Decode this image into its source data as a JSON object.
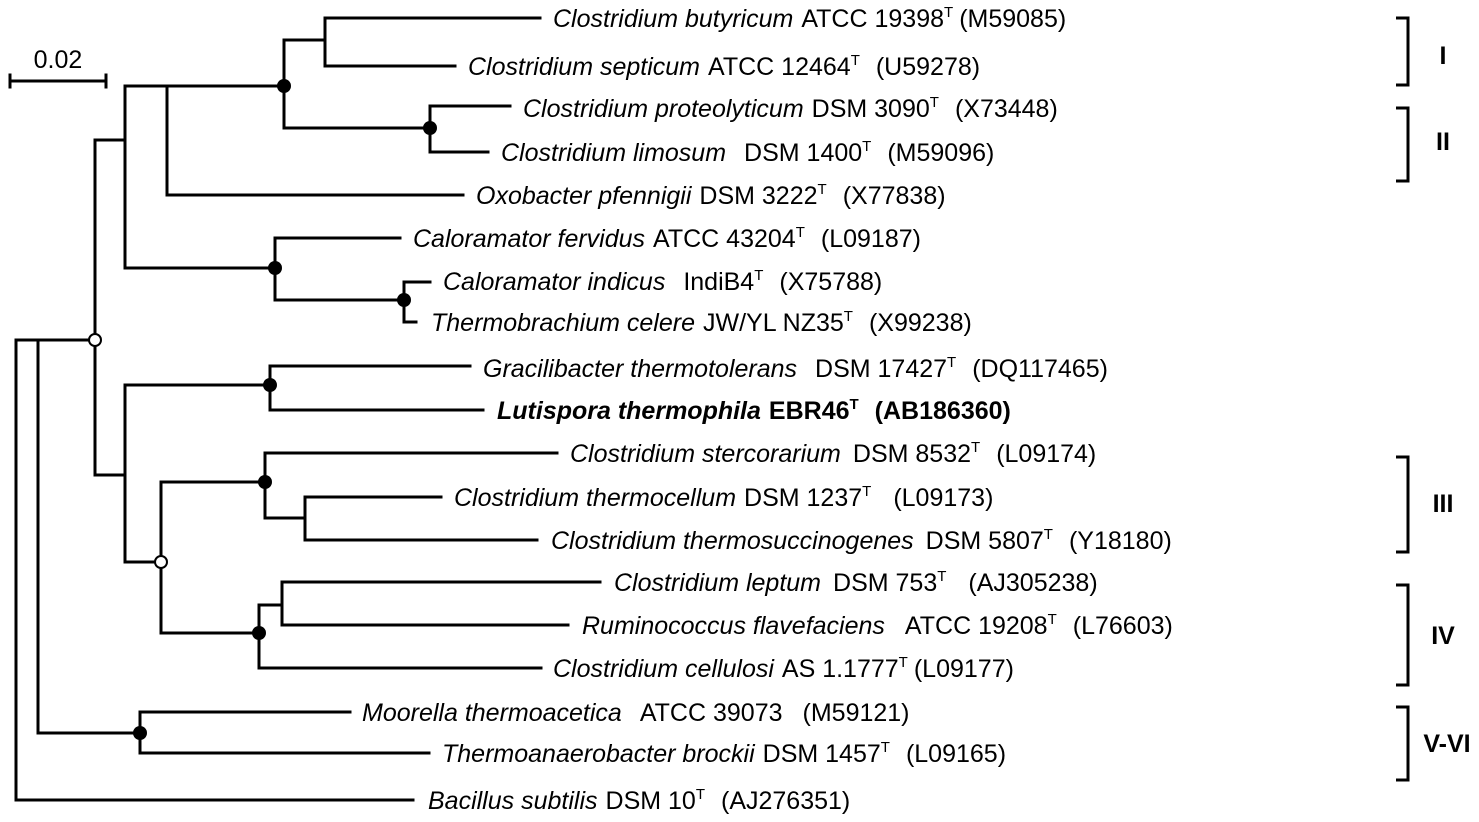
{
  "scale_bar": {
    "label": "0.02"
  },
  "taxa": [
    {
      "genus_species": "Clostridium butyricum",
      "strain": "ATCC 19398",
      "type_strain": true,
      "accession": "(M59085)",
      "bold": false
    },
    {
      "genus_species": "Clostridium septicum",
      "strain": "ATCC 12464",
      "type_strain": true,
      "accession": "(U59278)",
      "bold": false
    },
    {
      "genus_species": "Clostridium proteolyticum",
      "strain": "DSM 3090",
      "type_strain": true,
      "accession": "(X73448)",
      "bold": false
    },
    {
      "genus_species": "Clostridium limosum",
      "strain": "DSM 1400",
      "type_strain": true,
      "accession": "(M59096)",
      "bold": false
    },
    {
      "genus_species": "Oxobacter pfennigii",
      "strain": "DSM 3222",
      "type_strain": true,
      "accession": "(X77838)",
      "bold": false
    },
    {
      "genus_species": "Caloramator fervidus",
      "strain": "ATCC 43204",
      "type_strain": true,
      "accession": "(L09187)",
      "bold": false
    },
    {
      "genus_species": "Caloramator indicus",
      "strain": "IndiB4",
      "type_strain": true,
      "accession": "(X75788)",
      "bold": false
    },
    {
      "genus_species": "Thermobrachium celere",
      "strain": "JW/YL NZ35",
      "type_strain": true,
      "accession": "(X99238)",
      "bold": false
    },
    {
      "genus_species": "Gracilibacter thermotolerans",
      "strain": "DSM 17427",
      "type_strain": true,
      "accession": "(DQ117465)",
      "bold": false
    },
    {
      "genus_species": "Lutispora thermophila",
      "strain": "EBR46",
      "type_strain": true,
      "accession": "(AB186360)",
      "bold": true
    },
    {
      "genus_species": "Clostridium stercorarium",
      "strain": "DSM 8532",
      "type_strain": true,
      "accession": "(L09174)",
      "bold": false
    },
    {
      "genus_species": "Clostridium thermocellum",
      "strain": "DSM 1237",
      "type_strain": true,
      "accession": "(L09173)",
      "bold": false
    },
    {
      "genus_species": "Clostridium thermosuccinogenes",
      "strain": "DSM 5807",
      "type_strain": true,
      "accession": "(Y18180)",
      "bold": false
    },
    {
      "genus_species": "Clostridium leptum",
      "strain": "DSM 753",
      "type_strain": true,
      "accession": "(AJ305238)",
      "bold": false
    },
    {
      "genus_species": "Ruminococcus flavefaciens",
      "strain": "ATCC 19208",
      "type_strain": true,
      "accession": "(L76603)",
      "bold": false
    },
    {
      "genus_species": "Clostridium cellulosi",
      "strain": "AS 1.1777",
      "type_strain": true,
      "accession": "(L09177)",
      "bold": false
    },
    {
      "genus_species": "Moorella thermoacetica",
      "strain": "ATCC 39073",
      "type_strain": false,
      "accession": "(M59121)",
      "bold": false
    },
    {
      "genus_species": "Thermoanaerobacter brockii",
      "strain": "DSM 1457",
      "type_strain": true,
      "accession": "(L09165)",
      "bold": false
    },
    {
      "genus_species": "Bacillus subtilis",
      "strain": "DSM 10",
      "type_strain": true,
      "accession": "(AJ276351)",
      "bold": false
    }
  ],
  "type_superscript": "T",
  "clusters": [
    {
      "label": "I"
    },
    {
      "label": "II"
    },
    {
      "label": "III"
    },
    {
      "label": "IV"
    },
    {
      "label": "V-VI"
    }
  ]
}
